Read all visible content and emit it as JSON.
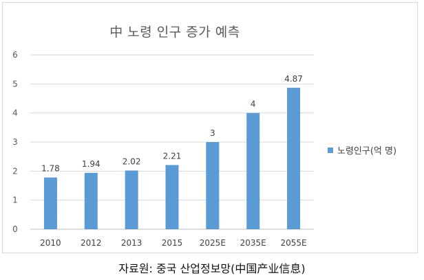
{
  "chart_data": {
    "type": "bar",
    "title": "中 노령 인구 증가 예측",
    "categories": [
      "2010",
      "2012",
      "2013",
      "2015",
      "2025E",
      "2035E",
      "2055E"
    ],
    "series": [
      {
        "name": "노령인구(억 명)",
        "values": [
          1.78,
          1.94,
          2.02,
          2.21,
          3,
          4,
          4.87
        ],
        "labels": [
          "1.78",
          "1.94",
          "2.02",
          "2.21",
          "3",
          "4",
          "4.87"
        ],
        "color": "#5b9bd5"
      }
    ],
    "y_ticks": [
      "0",
      "1",
      "2",
      "3",
      "4",
      "5",
      "6"
    ],
    "ylim": [
      0,
      6
    ],
    "grid": true,
    "legend_position": "right"
  },
  "source_note": "자료원: 중국 산업정보망(中国产业信息)"
}
